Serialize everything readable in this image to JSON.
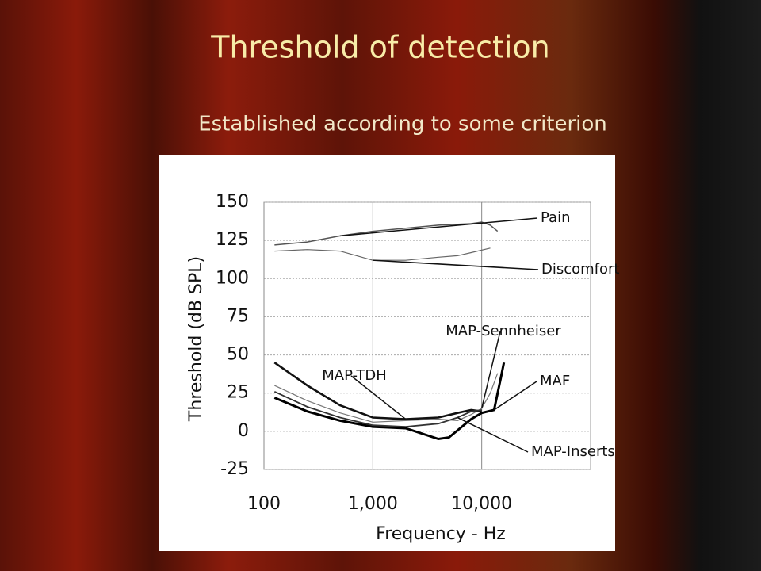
{
  "slide": {
    "title": "Threshold of detection",
    "subtitle": "Established according to some criterion"
  },
  "chart_data": {
    "type": "line",
    "xlabel": "Frequency - Hz",
    "ylabel": "Threshold (dB SPL)",
    "xscale": "log",
    "xlim": [
      100,
      100000
    ],
    "xticks": [
      100,
      {
        "value": 1000,
        "label": "1,000"
      },
      {
        "value": 10000,
        "label": "10,000"
      }
    ],
    "ylim": [
      -25,
      150
    ],
    "yticks": [
      -25,
      0,
      25,
      50,
      75,
      100,
      125,
      150
    ],
    "grid": true,
    "series": [
      {
        "name": "Pain",
        "color": "#555555",
        "x": [
          125,
          250,
          500,
          1000,
          2000,
          4000,
          8000,
          10000,
          12000,
          14000
        ],
        "values": [
          122,
          124,
          128,
          131,
          133,
          135,
          136,
          137,
          135,
          131
        ]
      },
      {
        "name": "Discomfort",
        "color": "#666666",
        "x": [
          125,
          250,
          500,
          1000,
          2000,
          4000,
          6000,
          8000,
          12000
        ],
        "values": [
          118,
          119,
          118,
          112,
          112,
          114,
          115,
          117,
          120
        ]
      },
      {
        "name": "MAP-Sennheiser",
        "color": "#777777",
        "x": [
          125,
          250,
          500,
          1000,
          2000,
          4000,
          6000,
          8000,
          10000,
          12000,
          14000
        ],
        "values": [
          30,
          20,
          12,
          6,
          7,
          8,
          7,
          11,
          15,
          25,
          38
        ]
      },
      {
        "name": "MAP-TDH",
        "color": "#111111",
        "x": [
          125,
          250,
          500,
          1000,
          2000,
          4000,
          6000,
          8000,
          10000
        ],
        "values": [
          45,
          30,
          17,
          9,
          8,
          9,
          12,
          14,
          13
        ]
      },
      {
        "name": "MAF",
        "color": "#000000",
        "x": [
          125,
          250,
          500,
          1000,
          2000,
          4000,
          5000,
          8000,
          10000,
          13000,
          15000,
          16000
        ],
        "values": [
          22,
          13,
          7,
          3,
          2,
          -5,
          -4,
          8,
          12,
          14,
          35,
          45
        ]
      },
      {
        "name": "MAP-Inserts",
        "color": "#333333",
        "x": [
          125,
          250,
          500,
          1000,
          2000,
          4000,
          6000,
          8000,
          10000
        ],
        "values": [
          26,
          16,
          9,
          4,
          3,
          5,
          9,
          13,
          14
        ]
      }
    ]
  }
}
